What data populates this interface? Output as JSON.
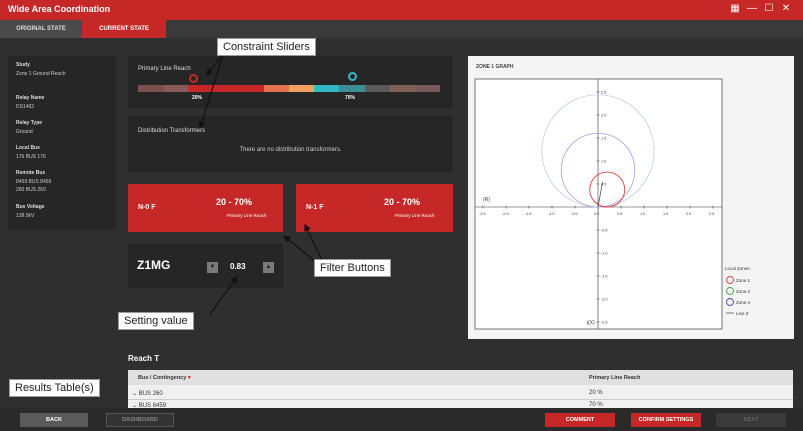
{
  "window": {
    "title": "Wide Area Coordination"
  },
  "tabs": [
    {
      "label": "ORIGINAL STATE"
    },
    {
      "label": "CURRENT STATE"
    }
  ],
  "info": [
    {
      "label": "Study",
      "value": "Zone 1 Ground Reach"
    },
    {
      "label": "Relay Name",
      "value": "DS1462"
    },
    {
      "label": "Relay Type",
      "value": "Ground"
    },
    {
      "label": "Local Bus",
      "value": "176 BUS 176"
    },
    {
      "label": "Remote Bus",
      "value": "8459 BUS 8459",
      "value2": "260 BUS 260"
    },
    {
      "label": "Bus Voltage",
      "value": "138.0kV"
    }
  ],
  "reach": {
    "title": "Primary Line Reach",
    "low_label": "20%",
    "high_label": "70%",
    "low_pct": 20,
    "high_pct": 70
  },
  "dt": {
    "title": "Distribution Transformers",
    "empty": "There are no distribution transformers."
  },
  "filters": [
    {
      "label": "N-0 F",
      "range": "20 - 70%",
      "sub": "Primary Line Reach"
    },
    {
      "label": "N-1 F",
      "range": "20 - 70%",
      "sub": "Primary Line Reach"
    }
  ],
  "setting": {
    "name": "Z1MG",
    "value": "0.83"
  },
  "graph": {
    "title": "ZONE 1 GRAPH",
    "r_label": "(R)",
    "jx_label": "j(X)",
    "x_ticks": [
      "-2.5",
      "-2.0",
      "-1.5",
      "-1.0",
      "-0.5",
      "0.0",
      "0.5",
      "1.0",
      "1.5",
      "2.0",
      "2.5"
    ],
    "y_ticks_pos": [
      "2.5",
      "2.0",
      "1.5",
      "1.0",
      "0.5"
    ],
    "y_ticks_neg": [
      "-0.5",
      "-1.0",
      "-1.5",
      "-2.0",
      "-2.5"
    ],
    "legend": {
      "title": "Local Zones:",
      "items": [
        "Zone 1",
        "Zone 2",
        "Zone 4",
        "Line Z"
      ]
    },
    "colors": {
      "zone1": "#e53935",
      "zone2": "#43a047",
      "zone4": "#3949ab",
      "line": "#555555"
    }
  },
  "results": {
    "title": "Reach T",
    "columns": [
      "Bus / Contingency",
      "Primary Line Reach"
    ],
    "rows": [
      {
        "bus": "BUS 260",
        "reach": "20 %"
      },
      {
        "bus": "BUS 8459",
        "reach": "70 %"
      }
    ]
  },
  "buttons": {
    "back": "BACK",
    "dashboard": "DASHBOARD",
    "comment": "COMMENT",
    "confirm": "CONFIRM SETTINGS",
    "next": "NEXT"
  },
  "annotations": {
    "constraint": "Constraint Sliders",
    "filter": "Filter Buttons",
    "setting": "Setting value",
    "results": "Results Table(s)"
  },
  "bar_colors": [
    "#7a5050",
    "#8a5a5a",
    "#c62828",
    "#c62828",
    "#c62828",
    "#e57352",
    "#f0a060",
    "#33b8c8",
    "#3a8f96",
    "#5a5a5a",
    "#806055",
    "#7a5a5a"
  ]
}
